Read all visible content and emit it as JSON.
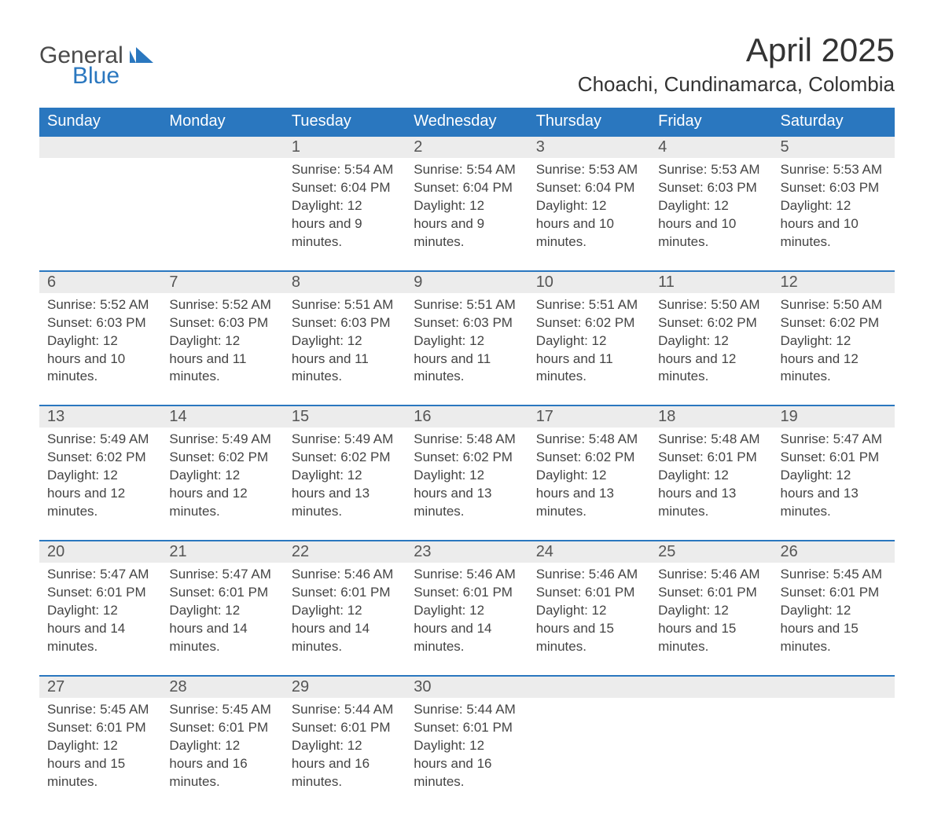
{
  "logo": {
    "word1": "General",
    "word2": "Blue",
    "mark_color": "#2a77bf",
    "text_color": "#4a4a4a"
  },
  "title": "April 2025",
  "subtitle": "Choachi, Cundinamarca, Colombia",
  "colors": {
    "header_bg": "#2a77bf",
    "header_text": "#ffffff",
    "row_divider": "#2a77bf",
    "daynum_bg": "#ececec",
    "text": "#444444",
    "background": "#ffffff"
  },
  "typography": {
    "title_fontsize": 42,
    "subtitle_fontsize": 26,
    "header_fontsize": 20,
    "daynum_fontsize": 20,
    "body_fontsize": 17
  },
  "days_of_week": [
    "Sunday",
    "Monday",
    "Tuesday",
    "Wednesday",
    "Thursday",
    "Friday",
    "Saturday"
  ],
  "weeks": [
    [
      {
        "n": "",
        "sunrise": "",
        "sunset": "",
        "daylight": ""
      },
      {
        "n": "",
        "sunrise": "",
        "sunset": "",
        "daylight": ""
      },
      {
        "n": "1",
        "sunrise": "Sunrise: 5:54 AM",
        "sunset": "Sunset: 6:04 PM",
        "daylight": "Daylight: 12 hours and 9 minutes."
      },
      {
        "n": "2",
        "sunrise": "Sunrise: 5:54 AM",
        "sunset": "Sunset: 6:04 PM",
        "daylight": "Daylight: 12 hours and 9 minutes."
      },
      {
        "n": "3",
        "sunrise": "Sunrise: 5:53 AM",
        "sunset": "Sunset: 6:04 PM",
        "daylight": "Daylight: 12 hours and 10 minutes."
      },
      {
        "n": "4",
        "sunrise": "Sunrise: 5:53 AM",
        "sunset": "Sunset: 6:03 PM",
        "daylight": "Daylight: 12 hours and 10 minutes."
      },
      {
        "n": "5",
        "sunrise": "Sunrise: 5:53 AM",
        "sunset": "Sunset: 6:03 PM",
        "daylight": "Daylight: 12 hours and 10 minutes."
      }
    ],
    [
      {
        "n": "6",
        "sunrise": "Sunrise: 5:52 AM",
        "sunset": "Sunset: 6:03 PM",
        "daylight": "Daylight: 12 hours and 10 minutes."
      },
      {
        "n": "7",
        "sunrise": "Sunrise: 5:52 AM",
        "sunset": "Sunset: 6:03 PM",
        "daylight": "Daylight: 12 hours and 11 minutes."
      },
      {
        "n": "8",
        "sunrise": "Sunrise: 5:51 AM",
        "sunset": "Sunset: 6:03 PM",
        "daylight": "Daylight: 12 hours and 11 minutes."
      },
      {
        "n": "9",
        "sunrise": "Sunrise: 5:51 AM",
        "sunset": "Sunset: 6:03 PM",
        "daylight": "Daylight: 12 hours and 11 minutes."
      },
      {
        "n": "10",
        "sunrise": "Sunrise: 5:51 AM",
        "sunset": "Sunset: 6:02 PM",
        "daylight": "Daylight: 12 hours and 11 minutes."
      },
      {
        "n": "11",
        "sunrise": "Sunrise: 5:50 AM",
        "sunset": "Sunset: 6:02 PM",
        "daylight": "Daylight: 12 hours and 12 minutes."
      },
      {
        "n": "12",
        "sunrise": "Sunrise: 5:50 AM",
        "sunset": "Sunset: 6:02 PM",
        "daylight": "Daylight: 12 hours and 12 minutes."
      }
    ],
    [
      {
        "n": "13",
        "sunrise": "Sunrise: 5:49 AM",
        "sunset": "Sunset: 6:02 PM",
        "daylight": "Daylight: 12 hours and 12 minutes."
      },
      {
        "n": "14",
        "sunrise": "Sunrise: 5:49 AM",
        "sunset": "Sunset: 6:02 PM",
        "daylight": "Daylight: 12 hours and 12 minutes."
      },
      {
        "n": "15",
        "sunrise": "Sunrise: 5:49 AM",
        "sunset": "Sunset: 6:02 PM",
        "daylight": "Daylight: 12 hours and 13 minutes."
      },
      {
        "n": "16",
        "sunrise": "Sunrise: 5:48 AM",
        "sunset": "Sunset: 6:02 PM",
        "daylight": "Daylight: 12 hours and 13 minutes."
      },
      {
        "n": "17",
        "sunrise": "Sunrise: 5:48 AM",
        "sunset": "Sunset: 6:02 PM",
        "daylight": "Daylight: 12 hours and 13 minutes."
      },
      {
        "n": "18",
        "sunrise": "Sunrise: 5:48 AM",
        "sunset": "Sunset: 6:01 PM",
        "daylight": "Daylight: 12 hours and 13 minutes."
      },
      {
        "n": "19",
        "sunrise": "Sunrise: 5:47 AM",
        "sunset": "Sunset: 6:01 PM",
        "daylight": "Daylight: 12 hours and 13 minutes."
      }
    ],
    [
      {
        "n": "20",
        "sunrise": "Sunrise: 5:47 AM",
        "sunset": "Sunset: 6:01 PM",
        "daylight": "Daylight: 12 hours and 14 minutes."
      },
      {
        "n": "21",
        "sunrise": "Sunrise: 5:47 AM",
        "sunset": "Sunset: 6:01 PM",
        "daylight": "Daylight: 12 hours and 14 minutes."
      },
      {
        "n": "22",
        "sunrise": "Sunrise: 5:46 AM",
        "sunset": "Sunset: 6:01 PM",
        "daylight": "Daylight: 12 hours and 14 minutes."
      },
      {
        "n": "23",
        "sunrise": "Sunrise: 5:46 AM",
        "sunset": "Sunset: 6:01 PM",
        "daylight": "Daylight: 12 hours and 14 minutes."
      },
      {
        "n": "24",
        "sunrise": "Sunrise: 5:46 AM",
        "sunset": "Sunset: 6:01 PM",
        "daylight": "Daylight: 12 hours and 15 minutes."
      },
      {
        "n": "25",
        "sunrise": "Sunrise: 5:46 AM",
        "sunset": "Sunset: 6:01 PM",
        "daylight": "Daylight: 12 hours and 15 minutes."
      },
      {
        "n": "26",
        "sunrise": "Sunrise: 5:45 AM",
        "sunset": "Sunset: 6:01 PM",
        "daylight": "Daylight: 12 hours and 15 minutes."
      }
    ],
    [
      {
        "n": "27",
        "sunrise": "Sunrise: 5:45 AM",
        "sunset": "Sunset: 6:01 PM",
        "daylight": "Daylight: 12 hours and 15 minutes."
      },
      {
        "n": "28",
        "sunrise": "Sunrise: 5:45 AM",
        "sunset": "Sunset: 6:01 PM",
        "daylight": "Daylight: 12 hours and 16 minutes."
      },
      {
        "n": "29",
        "sunrise": "Sunrise: 5:44 AM",
        "sunset": "Sunset: 6:01 PM",
        "daylight": "Daylight: 12 hours and 16 minutes."
      },
      {
        "n": "30",
        "sunrise": "Sunrise: 5:44 AM",
        "sunset": "Sunset: 6:01 PM",
        "daylight": "Daylight: 12 hours and 16 minutes."
      },
      {
        "n": "",
        "sunrise": "",
        "sunset": "",
        "daylight": ""
      },
      {
        "n": "",
        "sunrise": "",
        "sunset": "",
        "daylight": ""
      },
      {
        "n": "",
        "sunrise": "",
        "sunset": "",
        "daylight": ""
      }
    ]
  ]
}
